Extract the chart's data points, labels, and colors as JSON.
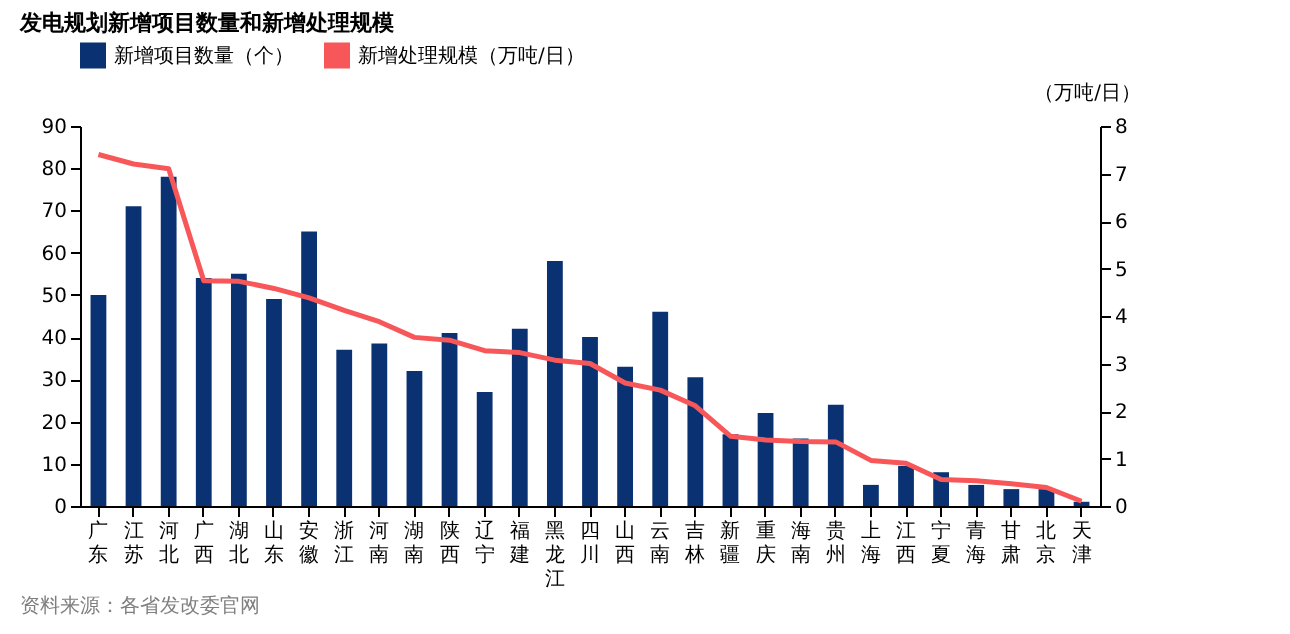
{
  "chart_data": {
    "type": "bar",
    "title": "发电规划新增项目数量和新增处理规模",
    "categories": [
      "广东",
      "江苏",
      "河北",
      "广西",
      "湖北",
      "山东",
      "安徽",
      "浙江",
      "河南",
      "湖南",
      "陕西",
      "辽宁",
      "福建",
      "黑龙江",
      "四川",
      "山西",
      "云南",
      "吉林",
      "新疆",
      "重庆",
      "海南",
      "贵州",
      "上海",
      "江西",
      "宁夏",
      "青海",
      "甘肃",
      "北京",
      "天津"
    ],
    "series": [
      {
        "name": "新增项目数量（个）",
        "color": "#0a3272",
        "values": [
          50,
          71,
          78,
          54,
          55,
          49,
          65,
          37,
          38.5,
          32,
          41,
          27,
          42,
          58,
          40,
          33,
          46,
          30.5,
          17,
          22,
          16,
          24,
          5,
          9.5,
          8,
          5,
          4,
          4,
          1
        ]
      },
      {
        "name": "新增处理规模（万吨/日）",
        "type": "line",
        "axis": "y2",
        "color": "#f8575a",
        "values": [
          7.4,
          7.2,
          7.1,
          4.74,
          4.73,
          4.58,
          4.38,
          4.12,
          3.88,
          3.55,
          3.49,
          3.27,
          3.23,
          3.07,
          3.0,
          2.59,
          2.44,
          2.11,
          1.47,
          1.39,
          1.36,
          1.35,
          0.96,
          0.9,
          0.56,
          0.53,
          0.47,
          0.39,
          0.1
        ]
      }
    ],
    "ylim": [
      0,
      90
    ],
    "yticks": [
      0,
      10,
      20,
      30,
      40,
      50,
      60,
      70,
      80,
      90
    ],
    "y2lim": [
      0,
      8
    ],
    "y2ticks": [
      0,
      1,
      2,
      3,
      4,
      5,
      6,
      7,
      8
    ],
    "y2label": "（万吨/日）",
    "legend": "top",
    "grid": false,
    "annotations": [
      "资料来源：各省发改委官网"
    ]
  }
}
